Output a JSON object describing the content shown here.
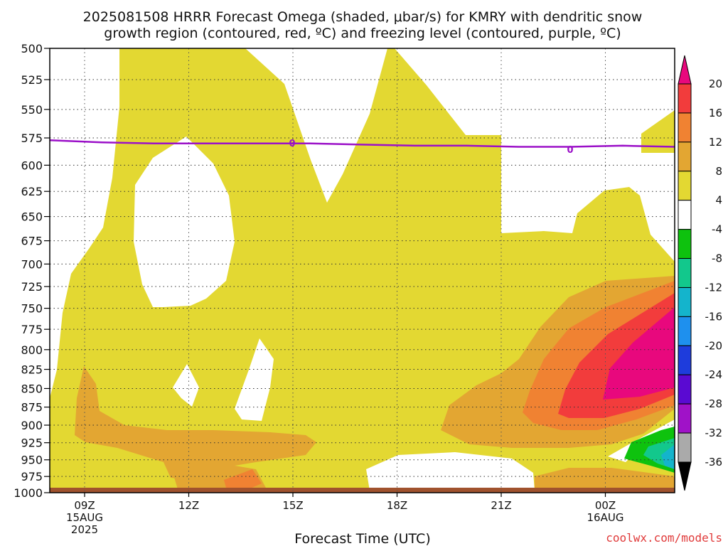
{
  "title_line1": "2025081508 HRRR Forecast Omega (shaded, μbar/s) for KMRY with dendritic snow",
  "title_line2": "growth region (contoured, red, ºC) and freezing level (contoured, purple, ºC)",
  "credit": "coolwx.com/models",
  "chart_data": {
    "type": "heatmap",
    "title": "2025081508 HRRR Forecast Omega (shaded, μbar/s) for KMRY with dendritic snow growth region (contoured, red, ºC) and freezing level (contoured, purple, ºC)",
    "xlabel": "Forecast Time (UTC)",
    "ylabel": "",
    "x_ticks": [
      {
        "label": "09Z",
        "sub": [
          "15AUG",
          "2025"
        ]
      },
      {
        "label": "12Z",
        "sub": []
      },
      {
        "label": "15Z",
        "sub": []
      },
      {
        "label": "18Z",
        "sub": []
      },
      {
        "label": "21Z",
        "sub": []
      },
      {
        "label": "00Z",
        "sub": [
          "16AUG"
        ]
      }
    ],
    "y_ticks": [
      "500",
      "525",
      "550",
      "575",
      "600",
      "625",
      "650",
      "675",
      "700",
      "725",
      "750",
      "775",
      "800",
      "825",
      "850",
      "875",
      "900",
      "925",
      "950",
      "975",
      "1000"
    ],
    "y_axis": "pressure (mb), inverted, log scale",
    "ylim": [
      1000,
      500
    ],
    "grid": true,
    "colorbar": {
      "labels": [
        "20",
        "16",
        "12",
        "8",
        "4",
        "-4",
        "-8",
        "-12",
        "-16",
        "-20",
        "-24",
        "-28",
        "-32",
        "-36"
      ],
      "colors": [
        "#e8087d",
        "#f23c3c",
        "#f08232",
        "#e3a632",
        "#e3d832",
        "#ffffff",
        "#0ec20e",
        "#12c88c",
        "#14b4cc",
        "#1e90ee",
        "#1e3cdc",
        "#5a0ad2",
        "#a012c8",
        "#aaaaaa",
        "#000000"
      ]
    },
    "freezing_level": {
      "label": "0",
      "color": "#9b10c8",
      "approx_pressure_mb": [
        577,
        579,
        580,
        580,
        580,
        580,
        581,
        582,
        582,
        583,
        583,
        582,
        583
      ]
    },
    "regions": [
      {
        "omega_range": "4 to 8",
        "color": "#e3d832",
        "desc": "broad rising motion mid/low levels"
      },
      {
        "omega_range": "8 to 12",
        "color": "#e3a632",
        "desc": "09Z-16Z near 850-960 mb; 20Z-03Z 725-925 mb"
      },
      {
        "omega_range": "12 to 16",
        "color": "#f08232"
      },
      {
        "omega_range": "16 to 20",
        "color": "#f23c3c"
      },
      {
        "omega_range": ">20",
        "color": "#e8087d",
        "desc": "around 00Z-03Z 775-875 mb"
      },
      {
        "omega_range": "-4 to -12",
        "color": "#0ec20e",
        "desc": "near 03Z 925-960 mb"
      }
    ]
  }
}
